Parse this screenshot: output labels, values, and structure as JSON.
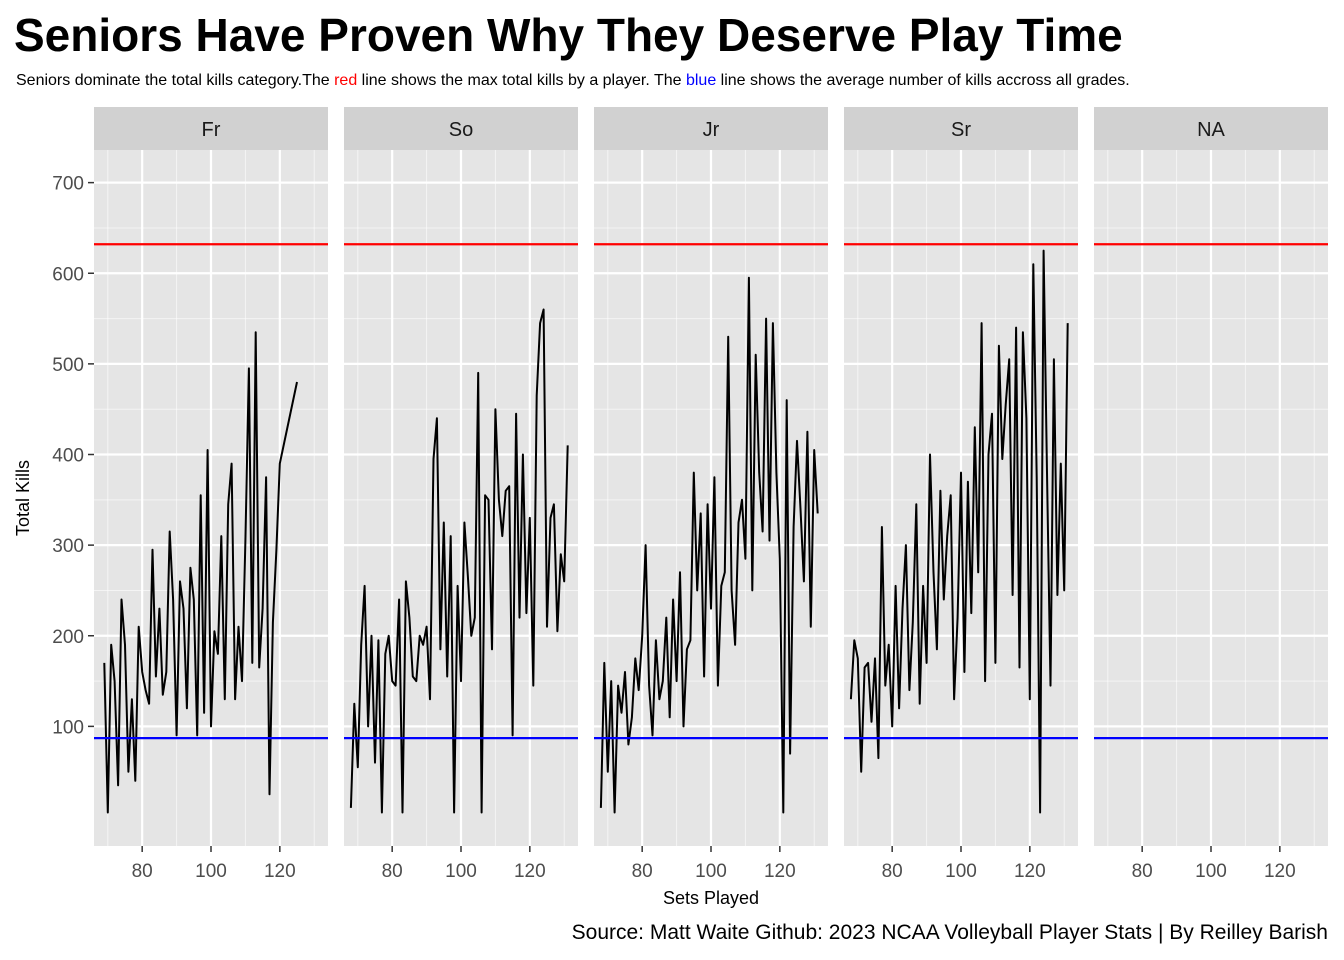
{
  "title": "Seniors Have Proven Why They Deserve Play Time",
  "subtitle": {
    "part1": "Seniors dominate the total kills category.The ",
    "red_word": "red",
    "part2": " line shows the max total kills by a player. The ",
    "blue_word": "blue",
    "part3": " line shows the average number of kills accross all grades."
  },
  "caption": "Source: Matt Waite Github: 2023 NCAA Volleyball Player Stats | By Reilley Barish",
  "colors": {
    "panel_bg": "#e5e5e5",
    "strip_bg": "#d1d1d1",
    "grid": "#ffffff",
    "max_line": "#ff0000",
    "avg_line": "#0000ff",
    "series_line": "#000000"
  },
  "chart_data": {
    "type": "line",
    "facet_by": "grade",
    "xlabel": "Sets Played",
    "ylabel": "Total Kills",
    "xlim": [
      66,
      134
    ],
    "ylim": [
      -32,
      736
    ],
    "x_ticks": [
      80,
      100,
      120
    ],
    "y_ticks": [
      100,
      200,
      300,
      400,
      500,
      600,
      700
    ],
    "reference_lines": [
      {
        "color": "red",
        "y": 632
      },
      {
        "color": "blue",
        "y": 87
      }
    ],
    "facets": [
      {
        "label": "Fr",
        "x": [
          69,
          70,
          71,
          72,
          73,
          74,
          75,
          76,
          77,
          78,
          79,
          80,
          81,
          82,
          83,
          84,
          85,
          86,
          87,
          88,
          89,
          90,
          91,
          92,
          93,
          94,
          95,
          96,
          97,
          98,
          99,
          100,
          101,
          102,
          103,
          104,
          105,
          106,
          107,
          108,
          109,
          110,
          111,
          112,
          113,
          114,
          115,
          116,
          117,
          118,
          119,
          120,
          125
        ],
        "y": [
          170,
          5,
          190,
          150,
          35,
          240,
          190,
          50,
          130,
          40,
          210,
          160,
          140,
          125,
          295,
          155,
          230,
          135,
          160,
          315,
          240,
          90,
          260,
          230,
          120,
          275,
          240,
          90,
          355,
          115,
          405,
          100,
          205,
          180,
          310,
          130,
          345,
          390,
          130,
          210,
          150,
          305,
          495,
          170,
          535,
          165,
          230,
          375,
          25,
          215,
          295,
          390,
          480
        ]
      },
      {
        "label": "So",
        "x": [
          68,
          69,
          70,
          71,
          72,
          73,
          74,
          75,
          76,
          77,
          78,
          79,
          80,
          81,
          82,
          83,
          84,
          85,
          86,
          87,
          88,
          89,
          90,
          91,
          92,
          93,
          94,
          95,
          96,
          97,
          98,
          99,
          100,
          101,
          102,
          103,
          104,
          105,
          106,
          107,
          108,
          109,
          110,
          111,
          112,
          113,
          114,
          115,
          116,
          117,
          118,
          119,
          120,
          121,
          122,
          123,
          124,
          125,
          126,
          127,
          128,
          129,
          130,
          131
        ],
        "y": [
          10,
          125,
          55,
          190,
          255,
          100,
          200,
          60,
          195,
          5,
          180,
          200,
          150,
          145,
          240,
          5,
          260,
          220,
          155,
          150,
          200,
          190,
          210,
          130,
          395,
          440,
          185,
          325,
          155,
          310,
          5,
          255,
          150,
          325,
          265,
          200,
          220,
          490,
          5,
          355,
          350,
          185,
          450,
          350,
          310,
          360,
          365,
          90,
          445,
          220,
          400,
          225,
          330,
          145,
          465,
          545,
          560,
          210,
          330,
          345,
          205,
          290,
          260,
          410
        ]
      },
      {
        "label": "Jr",
        "x": [
          68,
          69,
          70,
          71,
          72,
          73,
          74,
          75,
          76,
          77,
          78,
          79,
          80,
          81,
          82,
          83,
          84,
          85,
          86,
          87,
          88,
          89,
          90,
          91,
          92,
          93,
          94,
          95,
          96,
          97,
          98,
          99,
          100,
          101,
          102,
          103,
          104,
          105,
          106,
          107,
          108,
          109,
          110,
          111,
          112,
          113,
          114,
          115,
          116,
          117,
          118,
          119,
          120,
          121,
          122,
          123,
          124,
          125,
          126,
          127,
          128,
          129,
          130,
          131
        ],
        "y": [
          10,
          170,
          50,
          150,
          5,
          145,
          115,
          160,
          80,
          110,
          175,
          140,
          200,
          300,
          145,
          90,
          195,
          130,
          150,
          220,
          110,
          240,
          150,
          270,
          100,
          185,
          195,
          380,
          250,
          335,
          155,
          345,
          230,
          375,
          145,
          255,
          270,
          530,
          250,
          190,
          325,
          350,
          285,
          595,
          250,
          510,
          380,
          315,
          550,
          305,
          545,
          380,
          285,
          5,
          460,
          70,
          320,
          415,
          340,
          260,
          425,
          210,
          405,
          335
        ]
      },
      {
        "label": "Sr",
        "x": [
          68,
          69,
          70,
          71,
          72,
          73,
          74,
          75,
          76,
          77,
          78,
          79,
          80,
          81,
          82,
          83,
          84,
          85,
          86,
          87,
          88,
          89,
          90,
          91,
          92,
          93,
          94,
          95,
          96,
          97,
          98,
          99,
          100,
          101,
          102,
          103,
          104,
          105,
          106,
          107,
          108,
          109,
          110,
          111,
          112,
          113,
          114,
          115,
          116,
          117,
          118,
          119,
          120,
          121,
          122,
          123,
          124,
          125,
          126,
          127,
          128,
          129,
          130,
          131
        ],
        "y": [
          130,
          195,
          175,
          50,
          165,
          170,
          105,
          175,
          65,
          320,
          145,
          190,
          100,
          255,
          120,
          230,
          300,
          140,
          215,
          345,
          125,
          255,
          170,
          400,
          270,
          185,
          360,
          240,
          310,
          355,
          130,
          220,
          380,
          160,
          370,
          225,
          430,
          270,
          545,
          150,
          400,
          445,
          170,
          520,
          395,
          455,
          505,
          245,
          540,
          165,
          535,
          440,
          130,
          610,
          375,
          5,
          625,
          380,
          145,
          505,
          245,
          390,
          250,
          545
        ]
      },
      {
        "label": "NA",
        "x": [],
        "y": []
      }
    ]
  }
}
